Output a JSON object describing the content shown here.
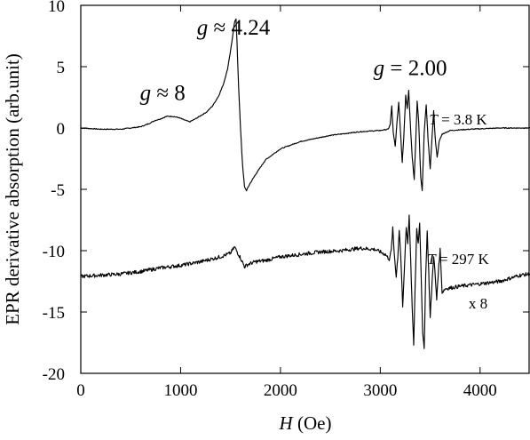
{
  "chart_data": {
    "type": "line",
    "xlabel": {
      "symbol": "H",
      "unit": " (Oe)"
    },
    "ylabel": "EPR derivative absorption (arb.unit)",
    "xlim": [
      0,
      4500
    ],
    "ylim": [
      -20,
      10
    ],
    "xticks": [
      0,
      1000,
      2000,
      3000,
      4000
    ],
    "yticks": [
      10,
      5,
      0,
      -5,
      -10,
      -15,
      -20
    ],
    "xtick_labels": [
      "0",
      "1000",
      "2000",
      "3000",
      "4000"
    ],
    "ytick_labels": [
      "10",
      "5",
      "0",
      "-5",
      "-10",
      "-15",
      "-20"
    ],
    "grid": false,
    "annotations": [
      {
        "g": "g",
        "rest": " ≈ 8",
        "x": 820,
        "y": 2.3,
        "size": "main"
      },
      {
        "g": "g",
        "rest": " ≈ 4.24",
        "x": 1530,
        "y": 7.6,
        "size": "main"
      },
      {
        "g": "g",
        "rest": " = 2.00",
        "x": 3300,
        "y": 4.3,
        "size": "main"
      },
      {
        "g": "T",
        "rest": " = 3.8 K",
        "x": 3780,
        "y": 0.3,
        "size": "small"
      },
      {
        "g": "T",
        "rest": " = 297 K",
        "x": 3780,
        "y": -11.1,
        "size": "small"
      },
      {
        "g": "",
        "rest": "x 8",
        "x": 3980,
        "y": -14.7,
        "size": "small"
      }
    ],
    "series": [
      {
        "points": [
          [
            0,
            0
          ],
          [
            200,
            -0.1
          ],
          [
            400,
            -0.1
          ],
          [
            600,
            0.1
          ],
          [
            680,
            0.35
          ],
          [
            740,
            0.6
          ],
          [
            800,
            0.75
          ],
          [
            860,
            0.95
          ],
          [
            920,
            0.95
          ],
          [
            980,
            0.85
          ],
          [
            1040,
            0.65
          ],
          [
            1090,
            0.5
          ],
          [
            1150,
            0.75
          ],
          [
            1200,
            1.0
          ],
          [
            1260,
            1.3
          ],
          [
            1320,
            1.8
          ],
          [
            1380,
            2.6
          ],
          [
            1430,
            3.6
          ],
          [
            1470,
            4.8
          ],
          [
            1500,
            6.3
          ],
          [
            1520,
            7.4
          ],
          [
            1540,
            8.6
          ],
          [
            1555,
            8.9
          ],
          [
            1565,
            7.0
          ],
          [
            1580,
            3.5
          ],
          [
            1600,
            0.0
          ],
          [
            1620,
            -3.0
          ],
          [
            1640,
            -4.8
          ],
          [
            1660,
            -5.1
          ],
          [
            1690,
            -4.6
          ],
          [
            1750,
            -3.8
          ],
          [
            1850,
            -2.6
          ],
          [
            2000,
            -1.7
          ],
          [
            2200,
            -1.1
          ],
          [
            2500,
            -0.6
          ],
          [
            2800,
            -0.3
          ],
          [
            3000,
            -0.2
          ],
          [
            3080,
            -0.1
          ],
          [
            3100,
            0.3
          ],
          [
            3115,
            1.8
          ],
          [
            3130,
            -0.4
          ],
          [
            3150,
            -1.5
          ],
          [
            3165,
            0.2
          ],
          [
            3185,
            2.1
          ],
          [
            3200,
            0.1
          ],
          [
            3220,
            -2.8
          ],
          [
            3235,
            -0.8
          ],
          [
            3255,
            2.7
          ],
          [
            3270,
            1.6
          ],
          [
            3285,
            3.1
          ],
          [
            3300,
            0.5
          ],
          [
            3320,
            -2.4
          ],
          [
            3340,
            -4.2
          ],
          [
            3355,
            -1.1
          ],
          [
            3370,
            2.2
          ],
          [
            3385,
            0.5
          ],
          [
            3405,
            -4.0
          ],
          [
            3420,
            -5.1
          ],
          [
            3440,
            -0.4
          ],
          [
            3460,
            1.9
          ],
          [
            3480,
            -1.1
          ],
          [
            3500,
            -3.3
          ],
          [
            3520,
            -0.6
          ],
          [
            3535,
            1.4
          ],
          [
            3550,
            -0.8
          ],
          [
            3570,
            -2.4
          ],
          [
            3590,
            -1.1
          ],
          [
            3620,
            -0.5
          ],
          [
            3700,
            -0.2
          ],
          [
            3900,
            -0.1
          ],
          [
            4200,
            0.0
          ],
          [
            4500,
            0.0
          ]
        ]
      },
      {
        "points": [
          [
            0,
            -12.1
          ],
          [
            200,
            -12.0
          ],
          [
            400,
            -11.9
          ],
          [
            600,
            -11.7
          ],
          [
            800,
            -11.4
          ],
          [
            1000,
            -11.2
          ],
          [
            1200,
            -10.9
          ],
          [
            1400,
            -10.5
          ],
          [
            1500,
            -10.2
          ],
          [
            1540,
            -9.7
          ],
          [
            1560,
            -10.0
          ],
          [
            1600,
            -10.6
          ],
          [
            1640,
            -11.3
          ],
          [
            1680,
            -11.1
          ],
          [
            1750,
            -10.9
          ],
          [
            1850,
            -10.8
          ],
          [
            2000,
            -10.5
          ],
          [
            2200,
            -10.3
          ],
          [
            2400,
            -10.1
          ],
          [
            2600,
            -10.0
          ],
          [
            2800,
            -9.8
          ],
          [
            2950,
            -9.9
          ],
          [
            3050,
            -10.3
          ],
          [
            3090,
            -10.7
          ],
          [
            3110,
            -10.0
          ],
          [
            3125,
            -8.2
          ],
          [
            3140,
            -10.2
          ],
          [
            3160,
            -12.1
          ],
          [
            3175,
            -10.6
          ],
          [
            3190,
            -8.3
          ],
          [
            3205,
            -10.4
          ],
          [
            3225,
            -14.6
          ],
          [
            3240,
            -11.8
          ],
          [
            3260,
            -8.0
          ],
          [
            3275,
            -9.4
          ],
          [
            3290,
            -7.1
          ],
          [
            3305,
            -10.8
          ],
          [
            3320,
            -14.8
          ],
          [
            3335,
            -17.6
          ],
          [
            3350,
            -12.8
          ],
          [
            3365,
            -8.2
          ],
          [
            3380,
            -9.4
          ],
          [
            3395,
            -7.7
          ],
          [
            3410,
            -12.0
          ],
          [
            3425,
            -16.8
          ],
          [
            3440,
            -18.0
          ],
          [
            3455,
            -12.1
          ],
          [
            3470,
            -8.4
          ],
          [
            3485,
            -11.6
          ],
          [
            3500,
            -15.5
          ],
          [
            3520,
            -12.4
          ],
          [
            3535,
            -10.4
          ],
          [
            3550,
            -12.0
          ],
          [
            3565,
            -14.0
          ],
          [
            3580,
            -11.9
          ],
          [
            3600,
            -9.9
          ],
          [
            3620,
            -13.4
          ],
          [
            3650,
            -13.1
          ],
          [
            3800,
            -12.9
          ],
          [
            4000,
            -12.7
          ],
          [
            4200,
            -12.5
          ],
          [
            4400,
            -12.0
          ],
          [
            4500,
            -11.9
          ]
        ]
      }
    ]
  }
}
